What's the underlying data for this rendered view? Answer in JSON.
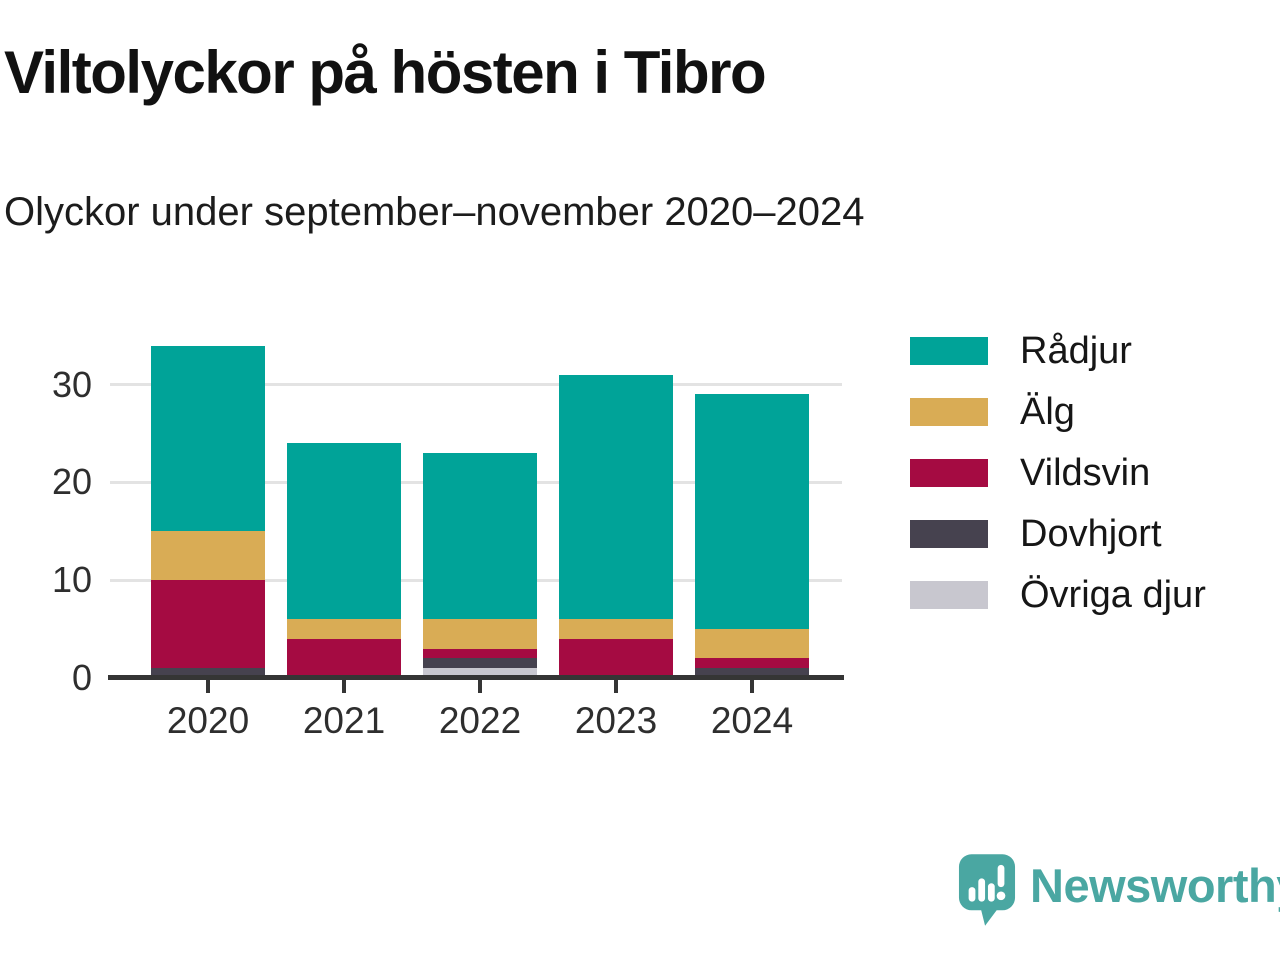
{
  "header": {
    "title": "Viltolyckor på hösten i Tibro",
    "subtitle": "Olyckor under september–november 2020–2024"
  },
  "chart_data": {
    "type": "bar",
    "stacked": true,
    "title": "Viltolyckor på hösten i Tibro",
    "subtitle": "Olyckor under september–november 2020–2024",
    "categories": [
      "2020",
      "2021",
      "2022",
      "2023",
      "2024"
    ],
    "series": [
      {
        "name": "Rådjur",
        "color": "#00A398",
        "values": [
          19,
          18,
          17,
          25,
          24
        ]
      },
      {
        "name": "Älg",
        "color": "#D9AC55",
        "values": [
          5,
          2,
          3,
          2,
          3
        ]
      },
      {
        "name": "Vildsvin",
        "color": "#A50B42",
        "values": [
          9,
          4,
          1,
          4,
          1
        ]
      },
      {
        "name": "Dovhjort",
        "color": "#46424F",
        "values": [
          1,
          0,
          1,
          0,
          1
        ]
      },
      {
        "name": "Övriga djur",
        "color": "#C8C7CF",
        "values": [
          0,
          0,
          1,
          0,
          0
        ]
      }
    ],
    "totals": [
      34,
      24,
      23,
      31,
      29
    ],
    "y_ticks": [
      0,
      10,
      20,
      30
    ],
    "ylim": [
      0,
      35
    ],
    "xlabel": "",
    "ylabel": "",
    "grid": "horizontal",
    "legend_position": "right",
    "colors": {
      "axis": "#353535",
      "gridline": "#e3e3e3",
      "tick_text": "#2e2e2e"
    }
  },
  "footer": {
    "brand": "Newsworthy",
    "brand_color": "#4AA7A2",
    "logo_icon": "newsworthy-speech-bubble-bar-chart-icon"
  }
}
